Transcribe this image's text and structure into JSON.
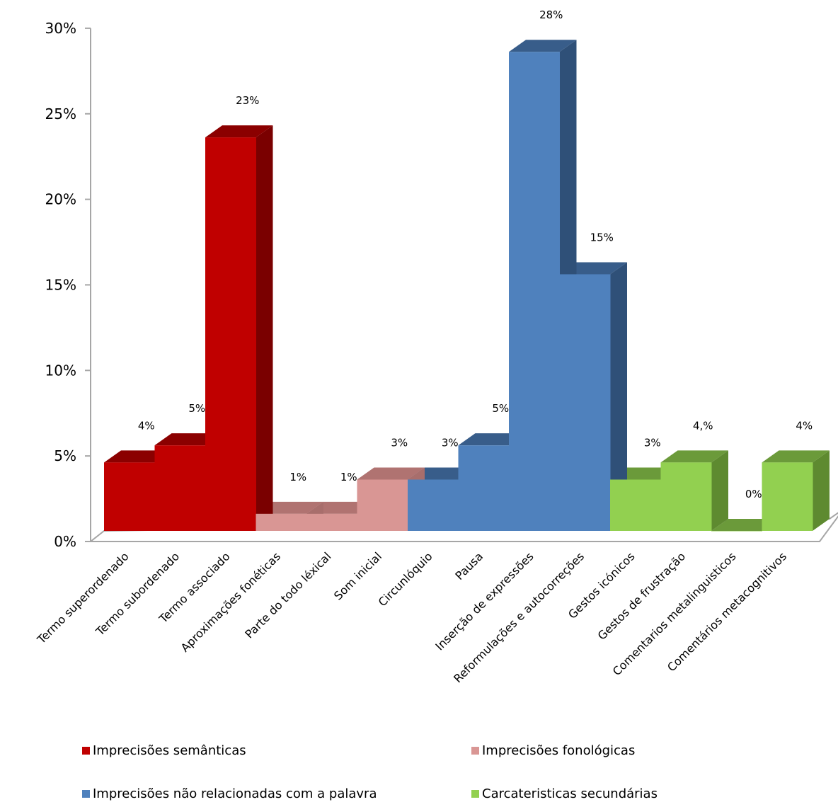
{
  "chart_data": {
    "type": "bar",
    "categories": [
      "Termo superordenado",
      "Termo subordenado",
      "Termo associado",
      "Aproximações fonéticas",
      "Parte do todo léxical",
      "Som inicial",
      "Circunlóquio",
      "Pausa",
      "Inserção de expressões",
      "Reformulações e autocorreções",
      "Gestos icónicos",
      "Gestos de frustração",
      "Comentarios metalinguisticos",
      "Comentários metacognitivos"
    ],
    "values": [
      0.04,
      0.05,
      0.23,
      0.01,
      0.01,
      0.03,
      0.03,
      0.05,
      0.28,
      0.15,
      0.03,
      0.04,
      0.0,
      0.04
    ],
    "data_labels": [
      "4%",
      "5%",
      "23%",
      "1%",
      "1%",
      "3%",
      "3%",
      "5%",
      "28%",
      "15%",
      "3%",
      "4,%",
      "0%",
      "4%"
    ],
    "groups": [
      0,
      0,
      0,
      1,
      1,
      1,
      2,
      2,
      2,
      2,
      3,
      3,
      3,
      3
    ],
    "series": [
      {
        "name": "Imprecisões semânticas",
        "color": "#c00000",
        "top": "#8b0000",
        "side": "#7a0000"
      },
      {
        "name": "Imprecisões fonológicas",
        "color": "#d99694",
        "top": "#b07371",
        "side": "#a86e6c"
      },
      {
        "name": "Imprecisões não relacionadas com a palavra",
        "color": "#4f81bd",
        "top": "#385d8a",
        "side": "#2f5078"
      },
      {
        "name": "Carcateristicas secundárias",
        "color": "#92d050",
        "top": "#6b9a3a",
        "side": "#5e8a30"
      }
    ],
    "yticks": [
      "0%",
      "5%",
      "10%",
      "15%",
      "20%",
      "25%",
      "30%"
    ],
    "ylim": [
      0,
      0.3
    ],
    "legend_position": "bottom",
    "grid": false
  }
}
